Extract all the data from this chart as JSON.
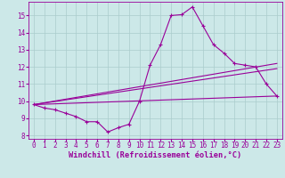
{
  "xlabel": "Windchill (Refroidissement éolien,°C)",
  "bg_color": "#cce8e8",
  "line_color": "#990099",
  "grid_color": "#aacccc",
  "xlim": [
    -0.5,
    23.5
  ],
  "ylim": [
    7.8,
    15.8
  ],
  "yticks": [
    8,
    9,
    10,
    11,
    12,
    13,
    14,
    15
  ],
  "xticks": [
    0,
    1,
    2,
    3,
    4,
    5,
    6,
    7,
    8,
    9,
    10,
    11,
    12,
    13,
    14,
    15,
    16,
    17,
    18,
    19,
    20,
    21,
    22,
    23
  ],
  "curve1_x": [
    0,
    1,
    2,
    3,
    4,
    5,
    6,
    7,
    8,
    9,
    10,
    11,
    12,
    13,
    14,
    15,
    16,
    17,
    18,
    19,
    20,
    21,
    22,
    23
  ],
  "curve1_y": [
    9.8,
    9.6,
    9.5,
    9.3,
    9.1,
    8.8,
    8.8,
    8.2,
    8.45,
    8.65,
    10.0,
    12.1,
    13.3,
    15.0,
    15.05,
    15.5,
    14.4,
    13.3,
    12.8,
    12.2,
    12.1,
    12.0,
    11.0,
    10.3
  ],
  "curve2_x": [
    0,
    23
  ],
  "curve2_y": [
    9.8,
    10.3
  ],
  "curve3_x": [
    0,
    23
  ],
  "curve3_y": [
    9.8,
    11.9
  ],
  "curve4_x": [
    0,
    23
  ],
  "curve4_y": [
    9.8,
    12.2
  ],
  "tick_label_size": 5.5,
  "xlabel_size": 6.2,
  "font_family": "monospace"
}
